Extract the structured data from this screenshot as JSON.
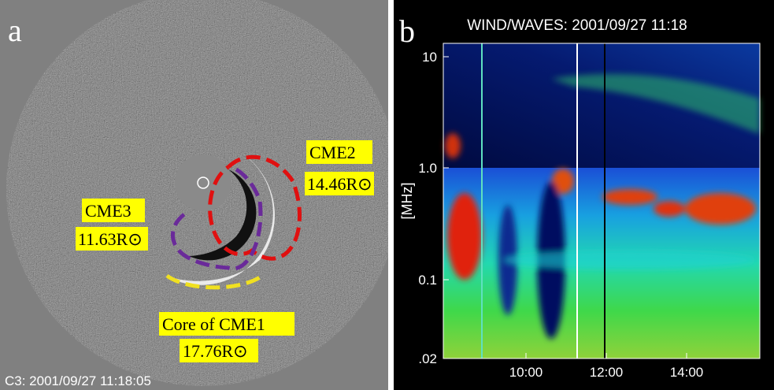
{
  "panels": [
    {
      "letter": "a",
      "annotations": [
        {
          "name": "CME2",
          "distance": "14.46R⊙"
        },
        {
          "name": "CME3",
          "distance": "11.63R⊙"
        },
        {
          "name": "Core of CME1",
          "distance": "17.76R⊙"
        }
      ],
      "timestamp": "C3: 2001/09/27 11:18:05"
    },
    {
      "letter": "b",
      "title": "WIND/WAVES: 2001/09/27 11:18",
      "y_label": "[MHz]",
      "yticks": [
        "10",
        "1.0",
        "0.1",
        ".02"
      ],
      "xticks": [
        "10:00",
        "12:00",
        "14:00"
      ]
    }
  ]
}
